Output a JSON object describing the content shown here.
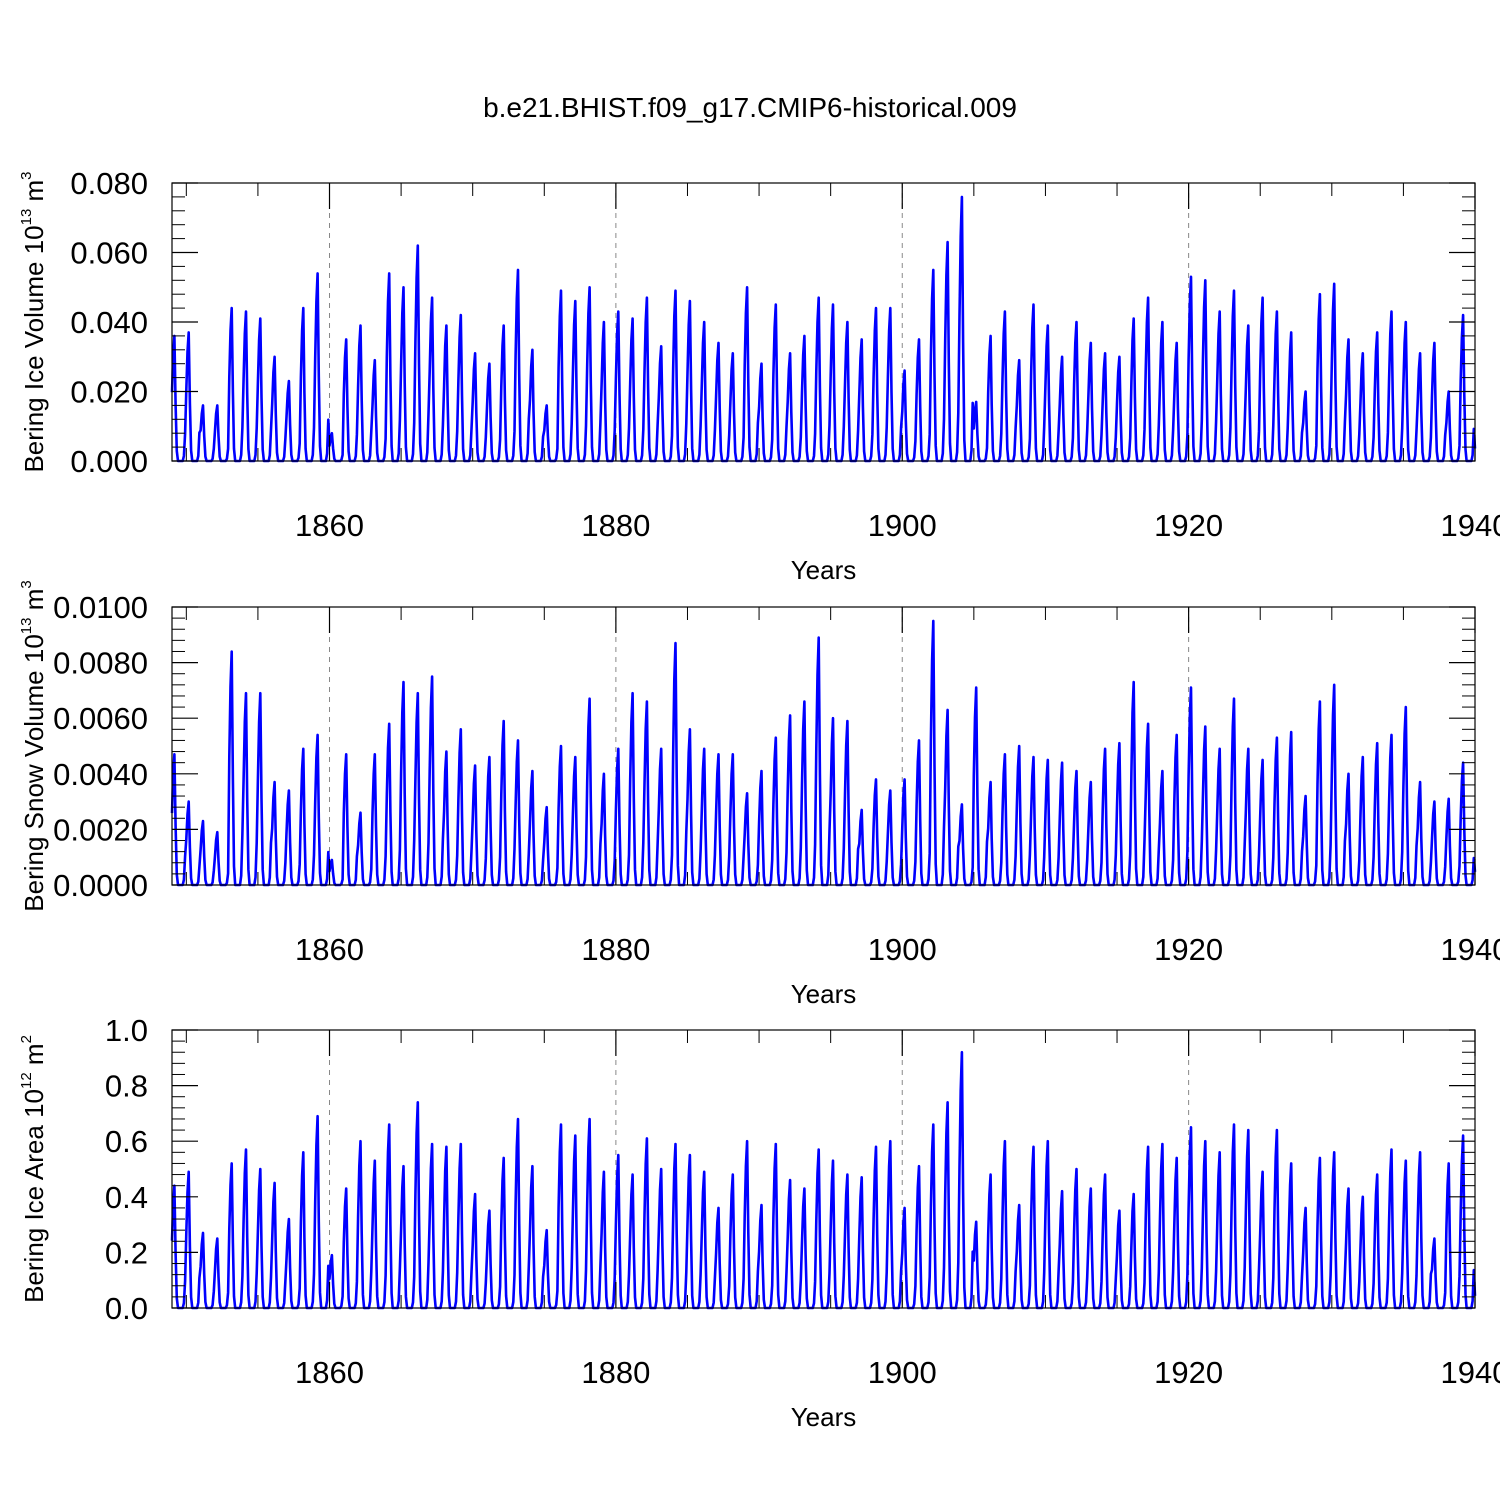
{
  "title": "b.e21.BHIST.f09_g17.CMIP6-historical.009",
  "colors": {
    "series": "#0000ff",
    "axis": "#000000",
    "grid": "#888888"
  },
  "chart_data": [
    {
      "type": "line",
      "series_name": "Bering Ice Volume",
      "ylabel": {
        "text": "Bering Ice Volume 10",
        "exponent": "13",
        "unit": "m",
        "unit_exponent": "3"
      },
      "xlabel": "Years",
      "xlim": [
        1849,
        1940
      ],
      "ylim": [
        0.0,
        0.08
      ],
      "x_ticks": [
        1860,
        1880,
        1900,
        1920,
        1940
      ],
      "x_tick_labels": [
        "1860",
        "1880",
        "1900",
        "1920",
        "1940"
      ],
      "y_ticks": [
        0.0,
        0.02,
        0.04,
        0.06,
        0.08
      ],
      "y_tick_labels": [
        "0.000",
        "0.020",
        "0.040",
        "0.060",
        "0.080"
      ],
      "grid_x": [
        1860,
        1880,
        1900,
        1920
      ],
      "annual_peaks": [
        0.036,
        0.037,
        0.016,
        0.016,
        0.044,
        0.043,
        0.041,
        0.03,
        0.023,
        0.044,
        0.054,
        0.008,
        0.035,
        0.039,
        0.029,
        0.054,
        0.05,
        0.062,
        0.047,
        0.039,
        0.042,
        0.031,
        0.028,
        0.039,
        0.055,
        0.032,
        0.016,
        0.049,
        0.046,
        0.05,
        0.04,
        0.043,
        0.041,
        0.047,
        0.033,
        0.049,
        0.046,
        0.04,
        0.034,
        0.031,
        0.05,
        0.028,
        0.045,
        0.031,
        0.036,
        0.047,
        0.045,
        0.04,
        0.035,
        0.044,
        0.044,
        0.026,
        0.035,
        0.055,
        0.063,
        0.076,
        0.017,
        0.036,
        0.043,
        0.029,
        0.045,
        0.039,
        0.03,
        0.04,
        0.034,
        0.031,
        0.03,
        0.041,
        0.047,
        0.04,
        0.034,
        0.053,
        0.052,
        0.043,
        0.049,
        0.039,
        0.047,
        0.043,
        0.037,
        0.02,
        0.048,
        0.051,
        0.035,
        0.031,
        0.037,
        0.043,
        0.04,
        0.031,
        0.034,
        0.02,
        0.042
      ]
    },
    {
      "type": "line",
      "series_name": "Bering Snow Volume",
      "ylabel": {
        "text": "Bering Snow Volume 10",
        "exponent": "13",
        "unit": "m",
        "unit_exponent": "3"
      },
      "xlabel": "Years",
      "xlim": [
        1849,
        1940
      ],
      "ylim": [
        0.0,
        0.01
      ],
      "x_ticks": [
        1860,
        1880,
        1900,
        1920,
        1940
      ],
      "x_tick_labels": [
        "1860",
        "1880",
        "1900",
        "1920",
        "1940"
      ],
      "y_ticks": [
        0.0,
        0.002,
        0.004,
        0.006,
        0.008,
        0.01
      ],
      "y_tick_labels": [
        "0.0000",
        "0.0020",
        "0.0040",
        "0.0060",
        "0.0080",
        "0.0100"
      ],
      "grid_x": [
        1860,
        1880,
        1900,
        1920
      ],
      "annual_peaks": [
        0.0047,
        0.003,
        0.0023,
        0.0019,
        0.0084,
        0.0069,
        0.0069,
        0.0037,
        0.0034,
        0.0049,
        0.0054,
        0.0009,
        0.0047,
        0.0026,
        0.0047,
        0.0058,
        0.0073,
        0.0069,
        0.0075,
        0.0048,
        0.0056,
        0.0043,
        0.0046,
        0.0059,
        0.0052,
        0.0041,
        0.0028,
        0.005,
        0.0046,
        0.0067,
        0.004,
        0.0049,
        0.0069,
        0.0066,
        0.0049,
        0.0087,
        0.0056,
        0.0049,
        0.0047,
        0.0047,
        0.0033,
        0.0041,
        0.0053,
        0.0061,
        0.0066,
        0.0089,
        0.006,
        0.0059,
        0.0027,
        0.0038,
        0.0034,
        0.0038,
        0.0052,
        0.0095,
        0.0063,
        0.0029,
        0.0071,
        0.0037,
        0.0047,
        0.005,
        0.0046,
        0.0045,
        0.0044,
        0.0041,
        0.0037,
        0.0049,
        0.0051,
        0.0073,
        0.0058,
        0.0041,
        0.0054,
        0.0071,
        0.0057,
        0.0049,
        0.0067,
        0.0049,
        0.0045,
        0.0053,
        0.0055,
        0.0032,
        0.0066,
        0.0072,
        0.004,
        0.0046,
        0.0051,
        0.0054,
        0.0064,
        0.0037,
        0.003,
        0.0031,
        0.0044
      ]
    },
    {
      "type": "line",
      "series_name": "Bering Ice Area",
      "ylabel": {
        "text": "Bering Ice Area 10",
        "exponent": "12",
        "unit": "m",
        "unit_exponent": "2"
      },
      "xlabel": "Years",
      "xlim": [
        1849,
        1940
      ],
      "ylim": [
        0.0,
        1.0
      ],
      "x_ticks": [
        1860,
        1880,
        1900,
        1920,
        1940
      ],
      "x_tick_labels": [
        "1860",
        "1880",
        "1900",
        "1920",
        "1940"
      ],
      "y_ticks": [
        0.0,
        0.2,
        0.4,
        0.6,
        0.8,
        1.0
      ],
      "y_tick_labels": [
        "0.0",
        "0.2",
        "0.4",
        "0.6",
        "0.8",
        "1.0"
      ],
      "grid_x": [
        1860,
        1880,
        1900,
        1920
      ],
      "annual_peaks": [
        0.44,
        0.49,
        0.27,
        0.25,
        0.52,
        0.57,
        0.5,
        0.45,
        0.32,
        0.56,
        0.69,
        0.19,
        0.43,
        0.6,
        0.53,
        0.66,
        0.51,
        0.74,
        0.59,
        0.58,
        0.59,
        0.41,
        0.35,
        0.54,
        0.68,
        0.51,
        0.28,
        0.66,
        0.62,
        0.68,
        0.49,
        0.55,
        0.48,
        0.61,
        0.5,
        0.59,
        0.55,
        0.49,
        0.36,
        0.48,
        0.6,
        0.37,
        0.59,
        0.46,
        0.43,
        0.57,
        0.53,
        0.48,
        0.47,
        0.58,
        0.6,
        0.36,
        0.51,
        0.66,
        0.74,
        0.92,
        0.31,
        0.48,
        0.6,
        0.37,
        0.58,
        0.6,
        0.42,
        0.5,
        0.43,
        0.48,
        0.35,
        0.41,
        0.58,
        0.59,
        0.54,
        0.65,
        0.6,
        0.56,
        0.66,
        0.64,
        0.49,
        0.64,
        0.52,
        0.36,
        0.54,
        0.56,
        0.43,
        0.4,
        0.48,
        0.57,
        0.53,
        0.56,
        0.25,
        0.52,
        0.62
      ]
    }
  ]
}
